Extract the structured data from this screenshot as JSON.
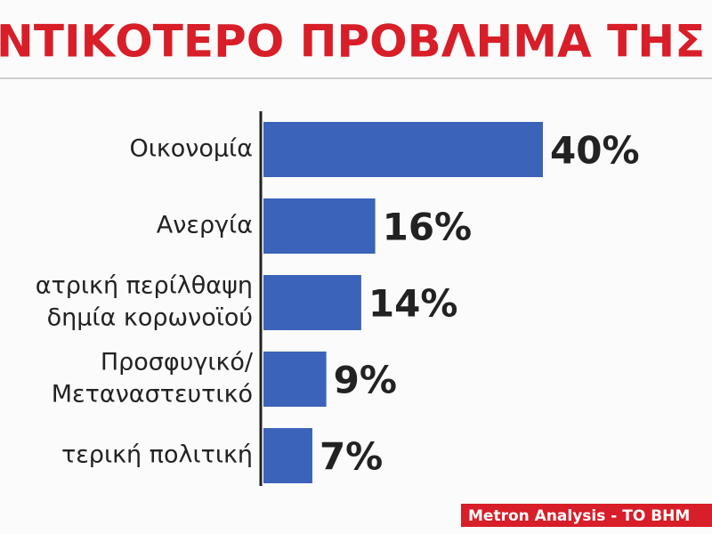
{
  "chart_data": {
    "type": "bar",
    "orientation": "horizontal",
    "title": "ΝΤΙΚΟΤΕΡΟ ΠΡΟΒΛΗΜΑ ΤΗΣ",
    "categories": [
      [
        "Οικονομία"
      ],
      [
        "Ανεργία"
      ],
      [
        "ατρική περίλθαψη",
        "δημία κορωνοϊού"
      ],
      [
        "Προσφυγικό/",
        "Μεταναστευτικό"
      ],
      [
        "τερική πολιτική"
      ]
    ],
    "values": [
      40,
      16,
      14,
      9,
      7
    ],
    "value_labels": [
      "40%",
      "16%",
      "14%",
      "9%",
      "7%"
    ],
    "color": "#3b63b9",
    "source": "Metron Analysis - TO BHM"
  }
}
